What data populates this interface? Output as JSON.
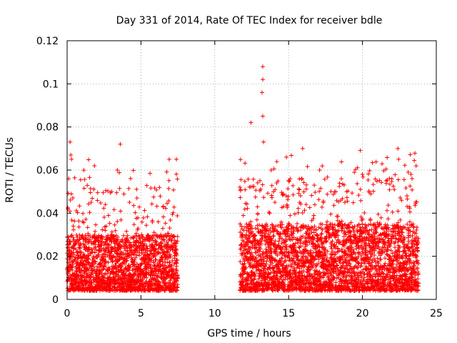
{
  "chart_data": {
    "type": "scatter",
    "title": "Day 331 of 2014, Rate Of TEC Index for receiver bdle",
    "xlabel": "GPS time / hours",
    "ylabel": "ROTI / TECUs",
    "xlim": [
      0,
      25
    ],
    "ylim": [
      0,
      0.12
    ],
    "xticks": [
      0,
      5,
      10,
      15,
      20,
      25
    ],
    "xtick_labels": [
      "0",
      "5",
      "10",
      "15",
      "20",
      "25"
    ],
    "yticks": [
      0,
      0.02,
      0.04,
      0.06,
      0.08,
      0.1,
      0.12
    ],
    "ytick_labels": [
      "0",
      "0.02",
      "0.04",
      "0.06",
      "0.08",
      "0.1",
      "0.12"
    ],
    "grid": true,
    "marker": "+",
    "color": "#ff0000",
    "series": [
      {
        "name": "ROTI",
        "segments": [
          {
            "x_start": 0.0,
            "x_end": 7.5,
            "typical_min": 0.004,
            "typical_max": 0.03
          },
          {
            "x_start": 11.7,
            "x_end": 23.8,
            "typical_min": 0.004,
            "typical_max": 0.035
          }
        ],
        "notable_points": [
          {
            "x": 0.2,
            "y": 0.073
          },
          {
            "x": 0.25,
            "y": 0.067
          },
          {
            "x": 0.3,
            "y": 0.065
          },
          {
            "x": 0.1,
            "y": 0.056
          },
          {
            "x": 1.85,
            "y": 0.062
          },
          {
            "x": 3.6,
            "y": 0.072
          },
          {
            "x": 3.4,
            "y": 0.06
          },
          {
            "x": 7.4,
            "y": 0.065
          },
          {
            "x": 12.45,
            "y": 0.082
          },
          {
            "x": 13.25,
            "y": 0.108
          },
          {
            "x": 13.25,
            "y": 0.102
          },
          {
            "x": 13.2,
            "y": 0.096
          },
          {
            "x": 13.25,
            "y": 0.085
          },
          {
            "x": 13.3,
            "y": 0.073
          },
          {
            "x": 14.85,
            "y": 0.066
          },
          {
            "x": 15.95,
            "y": 0.07
          },
          {
            "x": 17.1,
            "y": 0.06
          },
          {
            "x": 20.0,
            "y": 0.058
          },
          {
            "x": 22.4,
            "y": 0.07
          },
          {
            "x": 22.45,
            "y": 0.065
          },
          {
            "x": 23.1,
            "y": 0.059
          }
        ]
      }
    ]
  }
}
